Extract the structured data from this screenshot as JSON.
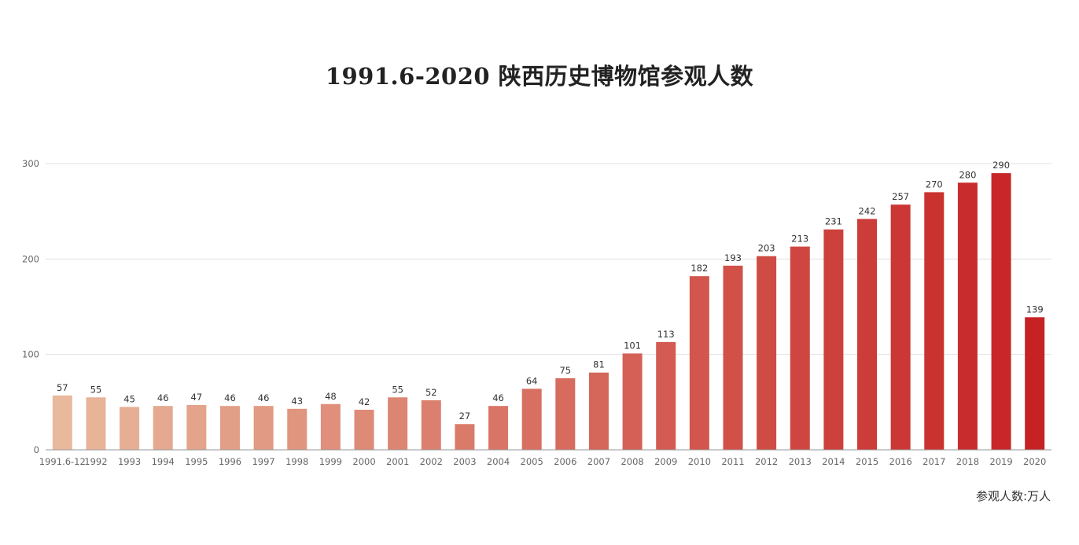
{
  "chart_data": {
    "type": "bar",
    "title": "1991.6-2020 陕西历史博物馆参观人数",
    "unit_note": "参观人数:万人",
    "categories": [
      "1991.6-12",
      "1992",
      "1993",
      "1994",
      "1995",
      "1996",
      "1997",
      "1998",
      "1999",
      "2000",
      "2001",
      "2002",
      "2003",
      "2004",
      "2005",
      "2006",
      "2007",
      "2008",
      "2009",
      "2010",
      "2011",
      "2012",
      "2013",
      "2014",
      "2015",
      "2016",
      "2017",
      "2018",
      "2019",
      "2020"
    ],
    "values": [
      57,
      55,
      45,
      46,
      47,
      46,
      46,
      43,
      48,
      42,
      55,
      52,
      27,
      46,
      64,
      75,
      81,
      101,
      113,
      182,
      193,
      203,
      213,
      231,
      242,
      257,
      270,
      280,
      290,
      139
    ],
    "yticks": [
      0,
      100,
      200,
      300
    ],
    "ylim": [
      0,
      300
    ],
    "grid": true,
    "data_labels": true,
    "colors": {
      "bar_start": "#E8B99C",
      "bar_end": "#C62224",
      "grid": "#E0E0E0",
      "axis": "#999999",
      "tick_text": "#666666",
      "label_text": "#333333"
    }
  }
}
